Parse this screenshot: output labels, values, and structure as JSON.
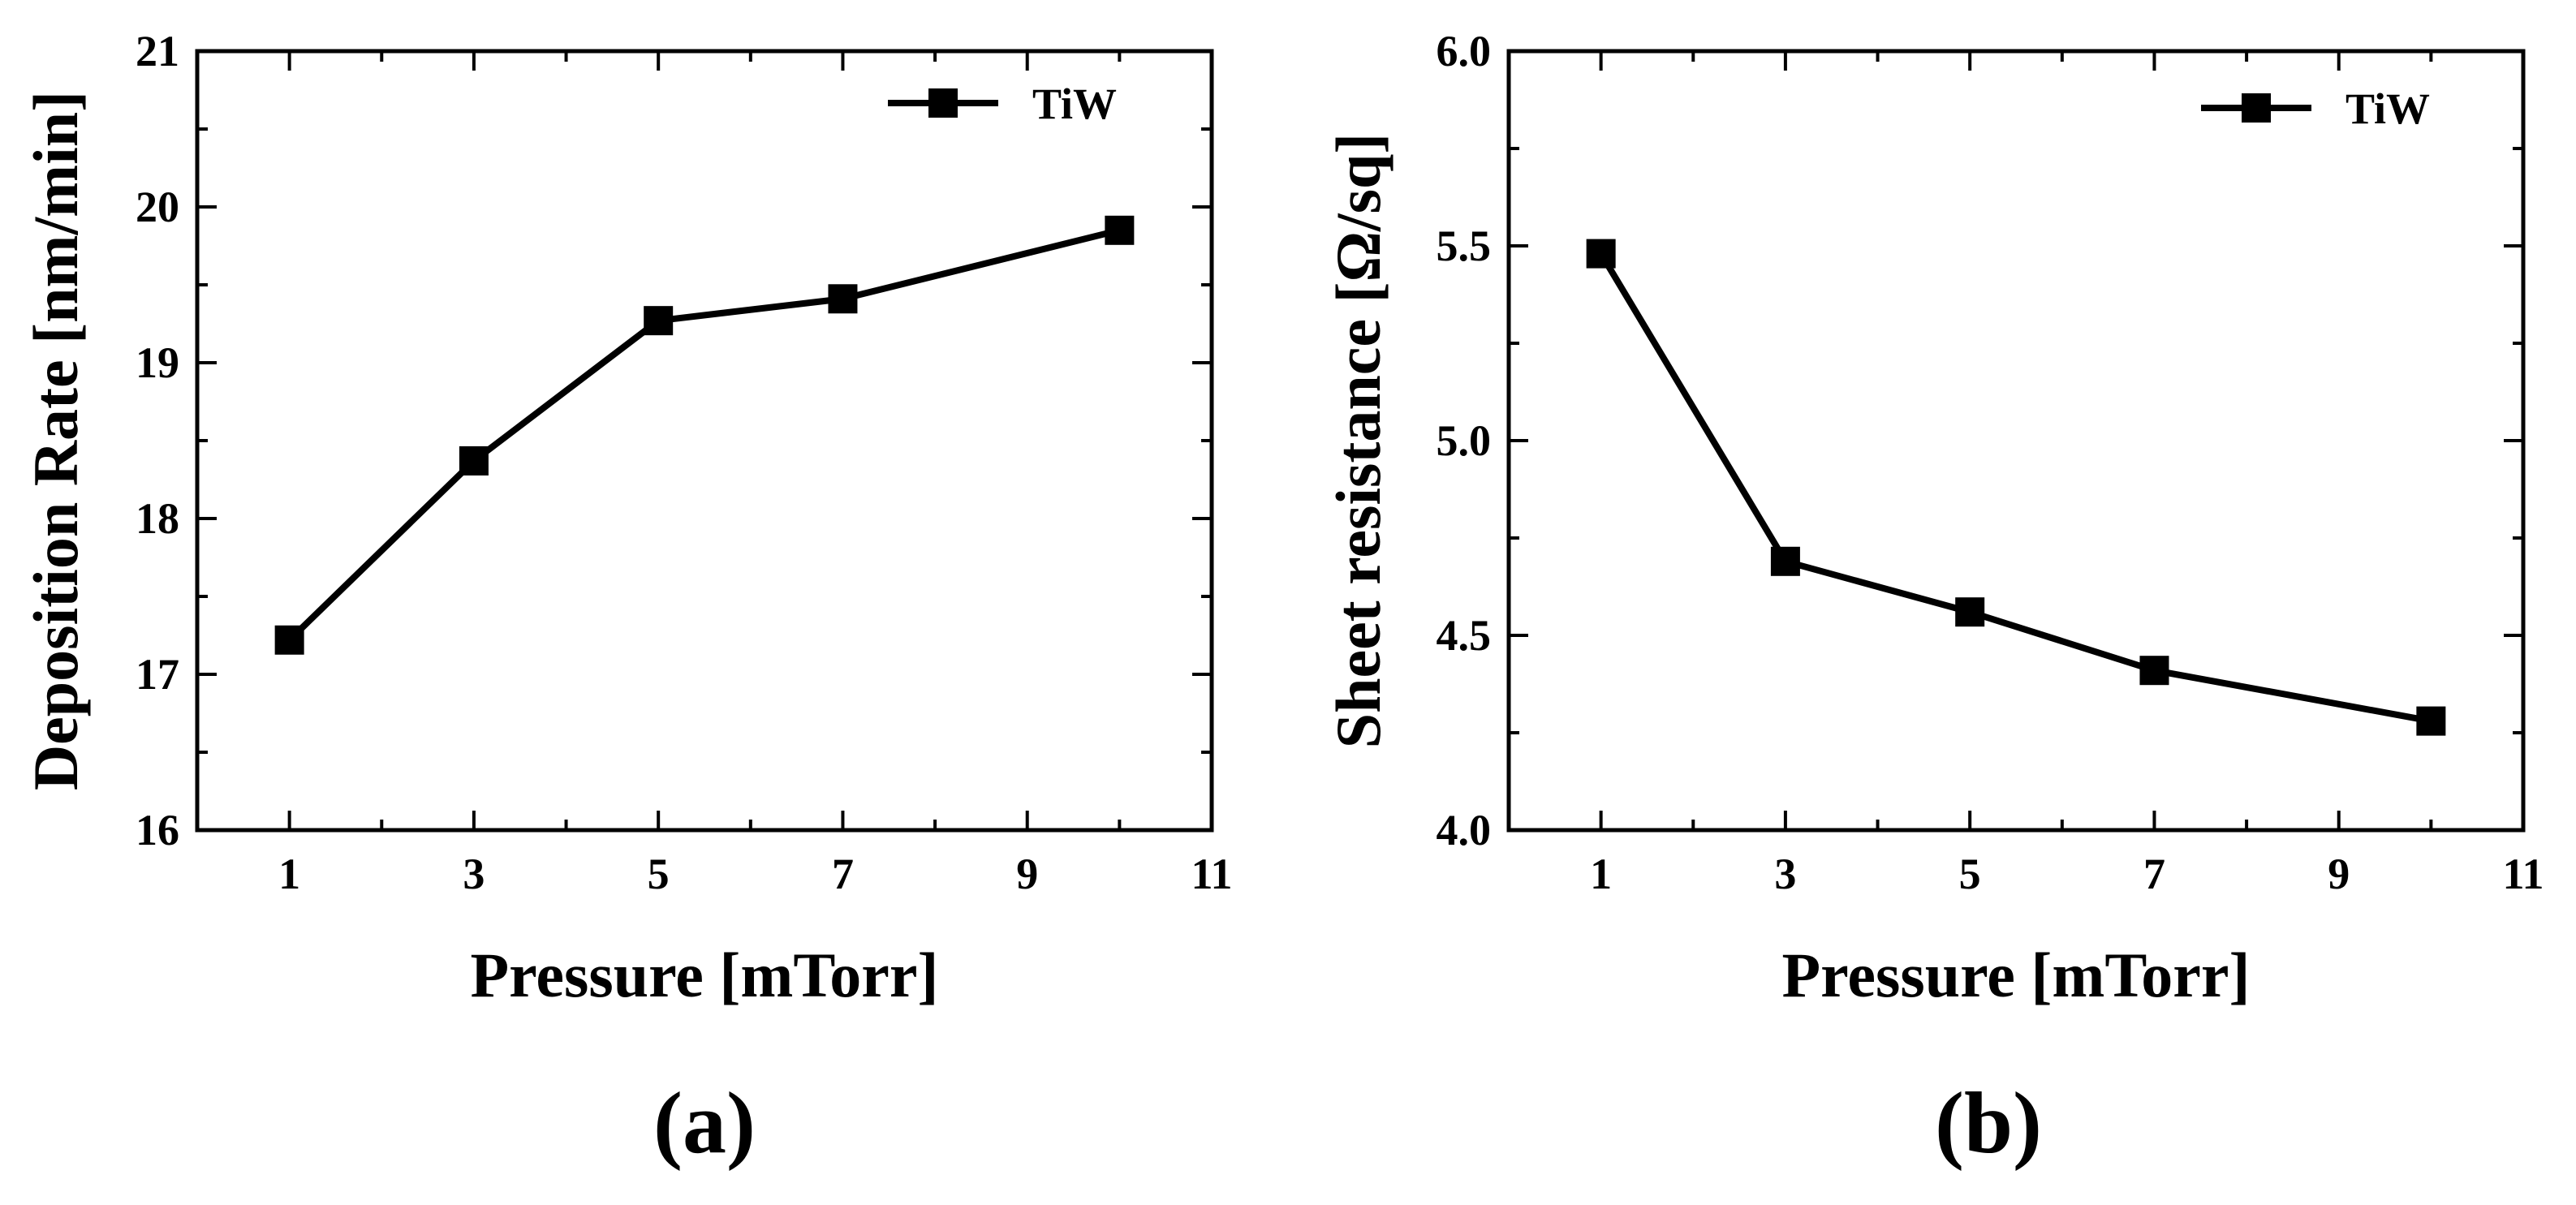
{
  "chart_data": [
    {
      "type": "line",
      "panel_label": "(a)",
      "title": "",
      "xlabel": "Pressure [mTorr]",
      "ylabel": "Deposition Rate [nm/min]",
      "xlim": [
        0,
        11
      ],
      "ylim": [
        16,
        21
      ],
      "xticks": [
        "1",
        "3",
        "5",
        "7",
        "9",
        "11"
      ],
      "yticks": [
        "16",
        "17",
        "18",
        "19",
        "20",
        "21"
      ],
      "grid": false,
      "legend_position": "top-right",
      "series": [
        {
          "name": "TiW",
          "marker": "square",
          "color": "#000000",
          "x": [
            1,
            3,
            5,
            7,
            10
          ],
          "y": [
            17.22,
            18.37,
            19.27,
            19.41,
            19.85
          ]
        }
      ]
    },
    {
      "type": "line",
      "panel_label": "(b)",
      "title": "",
      "xlabel": "Pressure [mTorr]",
      "ylabel": "Sheet resistance [Ω/sq]",
      "xlim": [
        0,
        11
      ],
      "ylim": [
        4.0,
        6.0
      ],
      "xticks": [
        "1",
        "3",
        "5",
        "7",
        "9",
        "11"
      ],
      "yticks": [
        "4.0",
        "4.5",
        "5.0",
        "5.5",
        "6.0"
      ],
      "grid": false,
      "legend_position": "top-right",
      "series": [
        {
          "name": "TiW",
          "marker": "square",
          "color": "#000000",
          "x": [
            1,
            3,
            5,
            7,
            10
          ],
          "y": [
            5.48,
            4.69,
            4.56,
            4.41,
            4.28
          ]
        }
      ]
    }
  ]
}
